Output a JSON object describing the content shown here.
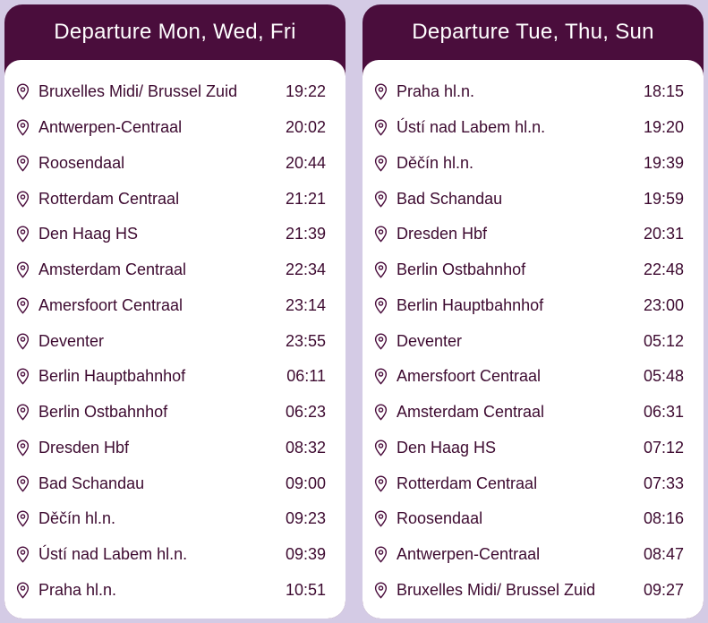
{
  "colors": {
    "header": "#4a0d3c",
    "text": "#3d0a30",
    "background": "#d4cbe5"
  },
  "icon": "location-pin-icon",
  "panels": [
    {
      "title": "Departure Mon, Wed, Fri",
      "stops": [
        {
          "station": "Bruxelles Midi/ Brussel Zuid",
          "time": "19:22"
        },
        {
          "station": "Antwerpen-Centraal",
          "time": "20:02"
        },
        {
          "station": "Roosendaal",
          "time": "20:44"
        },
        {
          "station": "Rotterdam Centraal",
          "time": "21:21"
        },
        {
          "station": "Den Haag HS",
          "time": "21:39"
        },
        {
          "station": "Amsterdam Centraal",
          "time": "22:34"
        },
        {
          "station": "Amersfoort Centraal",
          "time": "23:14"
        },
        {
          "station": "Deventer",
          "time": "23:55"
        },
        {
          "station": "Berlin Hauptbahnhof",
          "time": "06:11"
        },
        {
          "station": "Berlin Ostbahnhof",
          "time": "06:23"
        },
        {
          "station": "Dresden Hbf",
          "time": "08:32"
        },
        {
          "station": "Bad Schandau",
          "time": "09:00"
        },
        {
          "station": "Děčín hl.n.",
          "time": "09:23"
        },
        {
          "station": "Ústí nad Labem hl.n.",
          "time": "09:39"
        },
        {
          "station": "Praha hl.n.",
          "time": "10:51"
        }
      ]
    },
    {
      "title": "Departure Tue, Thu, Sun",
      "stops": [
        {
          "station": "Praha hl.n.",
          "time": "18:15"
        },
        {
          "station": "Ústí nad Labem hl.n.",
          "time": "19:20"
        },
        {
          "station": "Děčín hl.n.",
          "time": "19:39"
        },
        {
          "station": "Bad Schandau",
          "time": "19:59"
        },
        {
          "station": "Dresden Hbf",
          "time": "20:31"
        },
        {
          "station": "Berlin Ostbahnhof",
          "time": "22:48"
        },
        {
          "station": "Berlin Hauptbahnhof",
          "time": "23:00"
        },
        {
          "station": "Deventer",
          "time": "05:12"
        },
        {
          "station": "Amersfoort Centraal",
          "time": "05:48"
        },
        {
          "station": "Amsterdam Centraal",
          "time": "06:31"
        },
        {
          "station": "Den Haag HS",
          "time": "07:12"
        },
        {
          "station": "Rotterdam Centraal",
          "time": "07:33"
        },
        {
          "station": "Roosendaal",
          "time": "08:16"
        },
        {
          "station": "Antwerpen-Centraal",
          "time": "08:47"
        },
        {
          "station": "Bruxelles Midi/ Brussel Zuid",
          "time": "09:27"
        }
      ]
    }
  ]
}
